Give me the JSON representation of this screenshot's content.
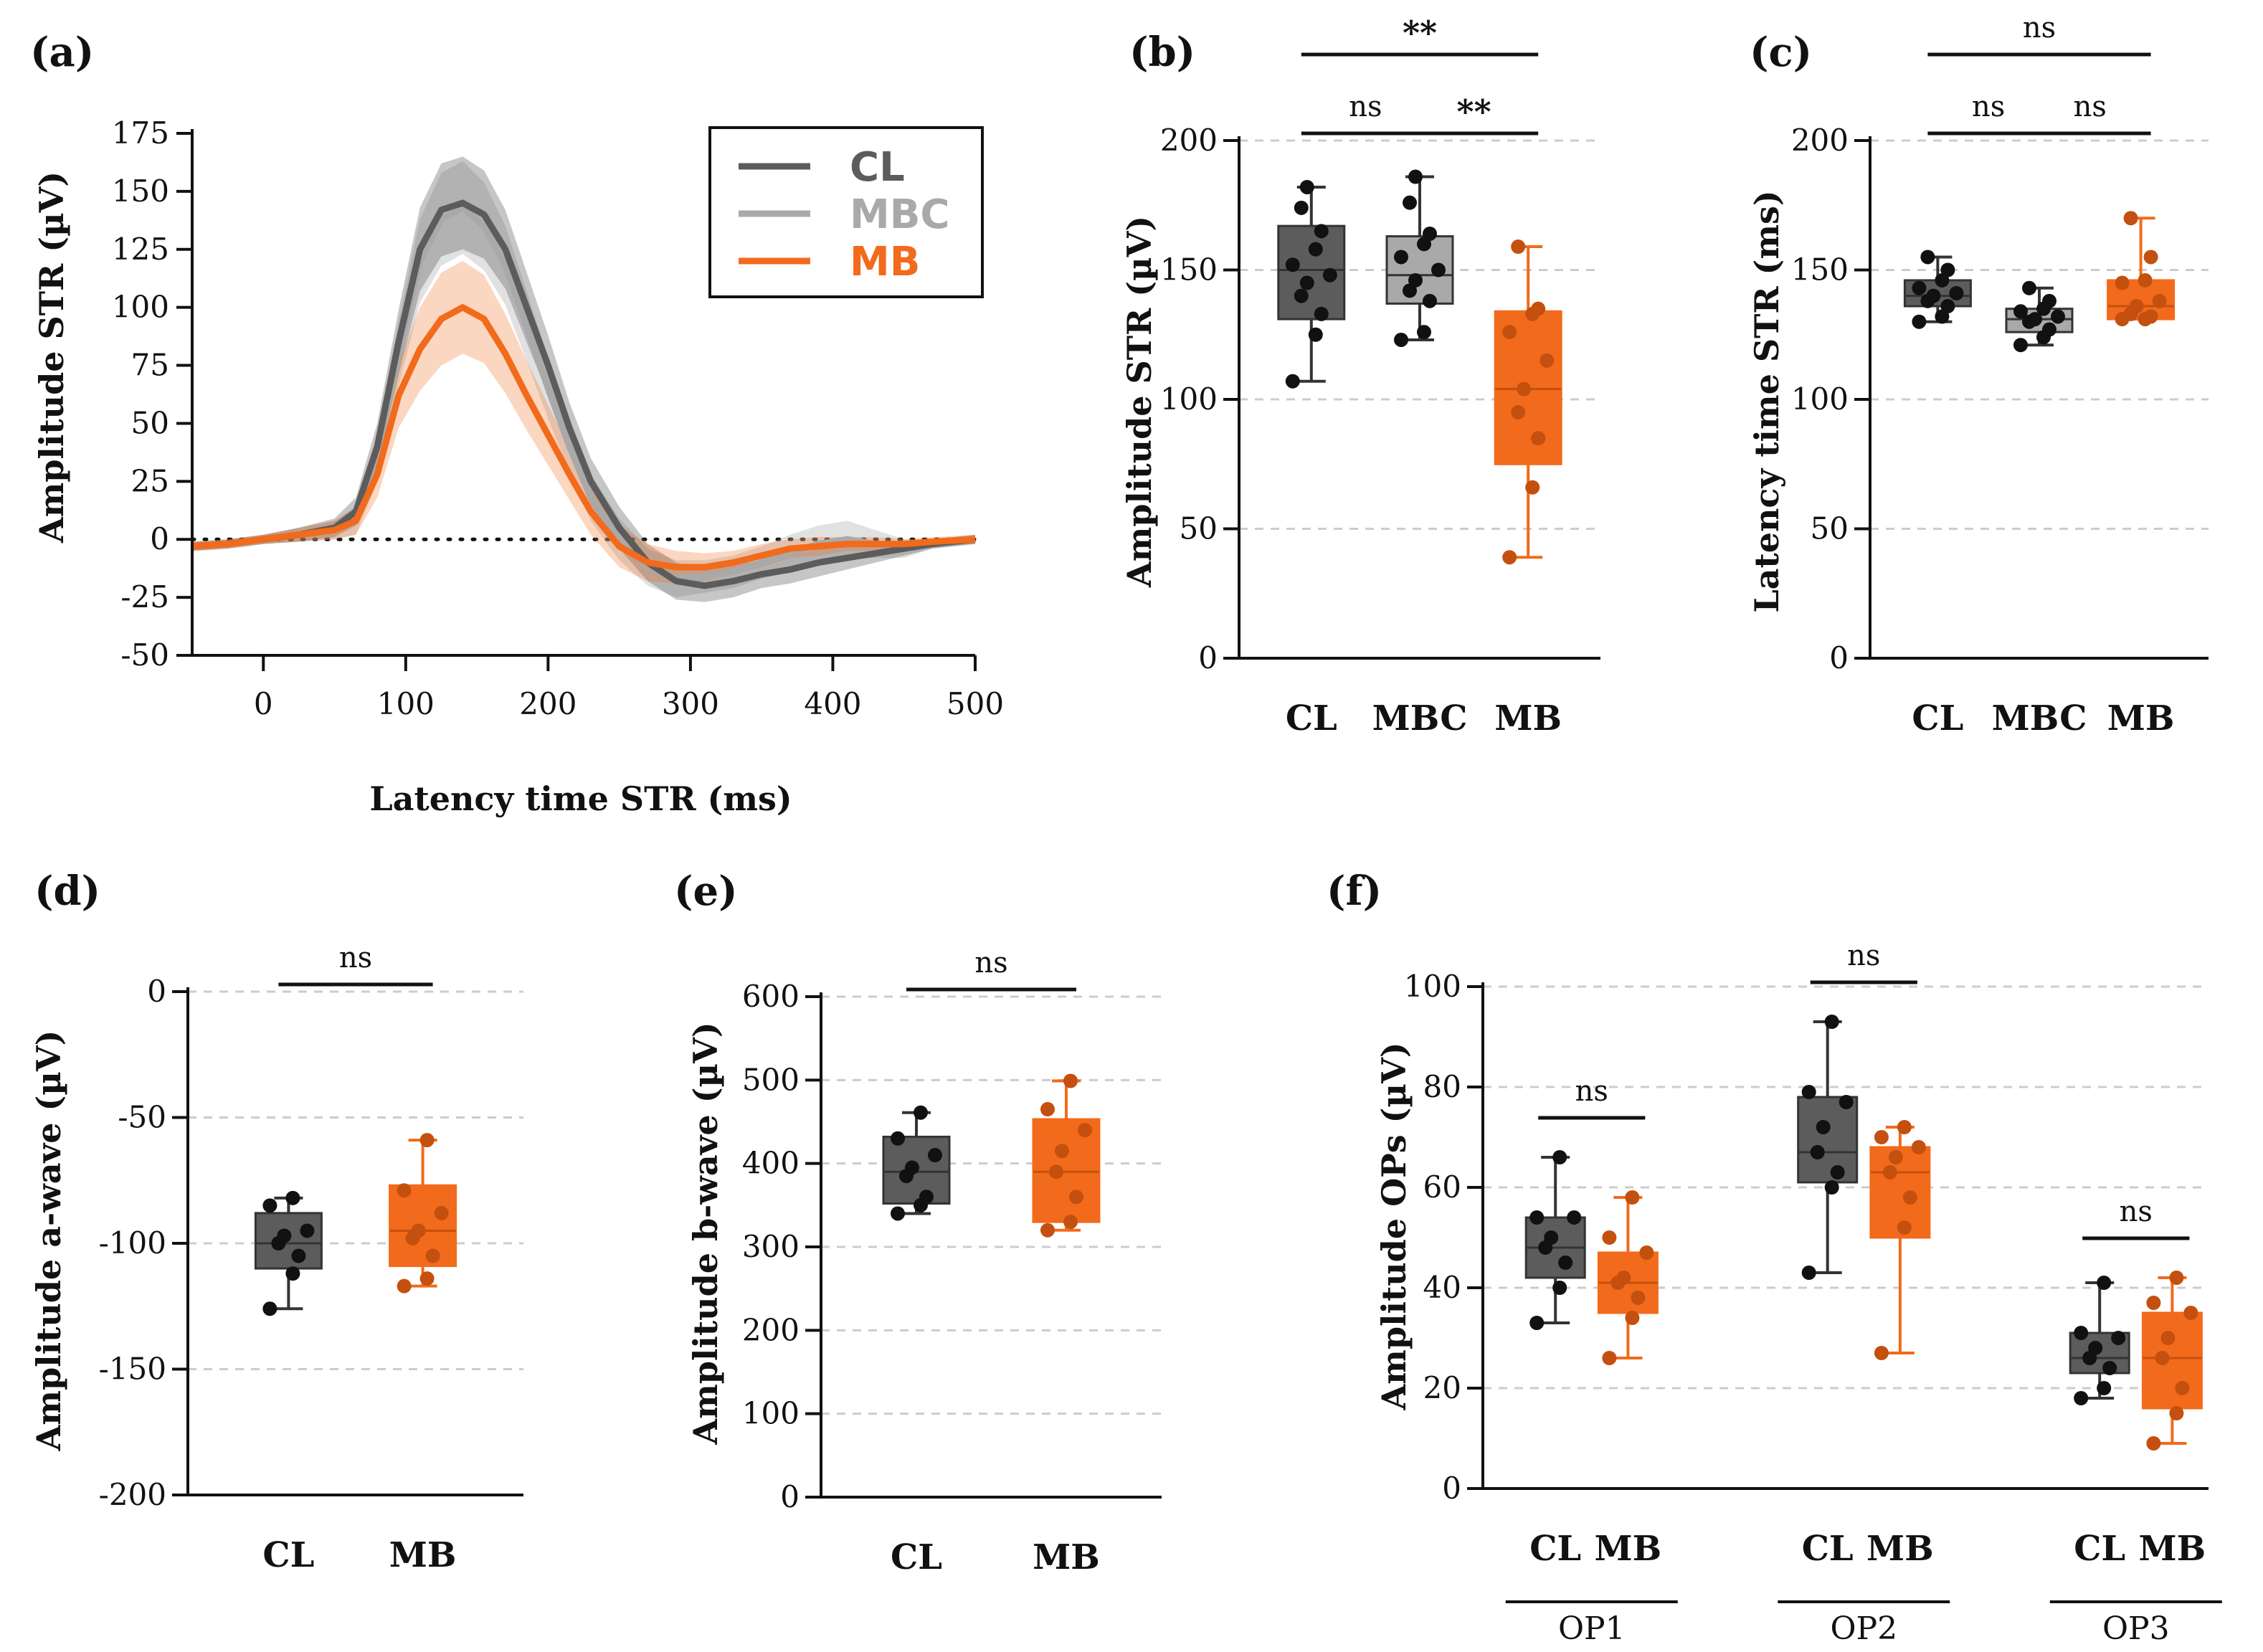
{
  "colors": {
    "CL": "#5c5c5c",
    "MBC": "#a9a9a9",
    "MB": "#f26a1b",
    "axis": "#111111",
    "grid": "#cccccc"
  },
  "chart_data": [
    {
      "id": "a",
      "panel_label": "(a)",
      "type": "line",
      "xlabel": "Latency time STR (ms)",
      "ylabel": "Amplitude STR (µV)",
      "xlim": [
        -50,
        500
      ],
      "ylim": [
        -50,
        175
      ],
      "xticks": [
        "0",
        "100",
        "200",
        "300",
        "400",
        "500"
      ],
      "yticks": [
        "-50",
        "-25",
        "0",
        "25",
        "50",
        "75",
        "100",
        "125",
        "150",
        "175"
      ],
      "legend": [
        "CL",
        "MBC",
        "MB"
      ],
      "x": [
        -50,
        -25,
        0,
        25,
        50,
        65,
        80,
        95,
        110,
        125,
        140,
        155,
        170,
        185,
        200,
        215,
        230,
        250,
        270,
        290,
        310,
        330,
        350,
        370,
        390,
        410,
        430,
        450,
        470,
        500
      ],
      "series": [
        {
          "name": "CL",
          "values": [
            -3,
            -2,
            0,
            2,
            5,
            12,
            40,
            85,
            125,
            142,
            145,
            140,
            125,
            100,
            75,
            48,
            25,
            5,
            -10,
            -18,
            -20,
            -18,
            -15,
            -13,
            -10,
            -8,
            -6,
            -4,
            -2,
            0
          ],
          "sd": [
            2,
            2,
            2,
            3,
            4,
            6,
            10,
            14,
            18,
            20,
            20,
            19,
            17,
            15,
            13,
            11,
            10,
            9,
            8,
            8,
            7,
            7,
            6,
            6,
            6,
            5,
            4,
            3,
            2,
            2
          ]
        },
        {
          "name": "MBC",
          "values": [
            -3,
            -2,
            0,
            2,
            4,
            8,
            35,
            80,
            120,
            138,
            143,
            135,
            118,
            92,
            65,
            40,
            18,
            0,
            -12,
            -17,
            -16,
            -14,
            -10,
            -6,
            -2,
            0,
            -2,
            -4,
            -2,
            0
          ],
          "sd": [
            2,
            2,
            2,
            3,
            4,
            6,
            10,
            14,
            18,
            20,
            20,
            19,
            17,
            15,
            13,
            11,
            10,
            9,
            8,
            8,
            7,
            7,
            7,
            8,
            8,
            8,
            6,
            4,
            2,
            2
          ]
        },
        {
          "name": "MB",
          "values": [
            -3,
            -2,
            0,
            2,
            4,
            8,
            28,
            62,
            82,
            95,
            100,
            95,
            80,
            62,
            45,
            28,
            12,
            -3,
            -10,
            -12,
            -12,
            -10,
            -7,
            -4,
            -3,
            -2,
            -2,
            -2,
            -1,
            0
          ],
          "sd": [
            2,
            2,
            2,
            3,
            4,
            6,
            10,
            14,
            18,
            20,
            20,
            19,
            17,
            15,
            13,
            11,
            10,
            9,
            8,
            7,
            6,
            5,
            5,
            4,
            4,
            3,
            3,
            2,
            2,
            2
          ]
        }
      ]
    },
    {
      "id": "b",
      "panel_label": "(b)",
      "type": "box",
      "ylabel": "Amplitude STR (µV)",
      "ylim": [
        0,
        200
      ],
      "yticks": [
        "0",
        "50",
        "100",
        "150",
        "200"
      ],
      "categories": [
        "CL",
        "MBC",
        "MB"
      ],
      "boxes": [
        {
          "name": "CL",
          "min": 107,
          "q1": 131,
          "median": 150,
          "q3": 167,
          "max": 182,
          "points": [
            107,
            125,
            133,
            140,
            145,
            148,
            152,
            158,
            165,
            174,
            182
          ]
        },
        {
          "name": "MBC",
          "min": 123,
          "q1": 137,
          "median": 148,
          "q3": 163,
          "max": 186,
          "points": [
            123,
            126,
            138,
            142,
            146,
            150,
            155,
            160,
            164,
            176,
            186
          ]
        },
        {
          "name": "MB",
          "min": 39,
          "q1": 75,
          "median": 104,
          "q3": 134,
          "max": 159,
          "points": [
            39,
            66,
            85,
            95,
            104,
            115,
            126,
            133,
            135,
            159
          ]
        }
      ],
      "comparisons": [
        {
          "from": "CL",
          "to": "MB",
          "label": "**",
          "level": 2
        },
        {
          "from": "CL",
          "to": "MBC",
          "label": "ns",
          "level": 1
        },
        {
          "from": "MBC",
          "to": "MB",
          "label": "**",
          "level": 1
        }
      ]
    },
    {
      "id": "c",
      "panel_label": "(c)",
      "type": "box",
      "ylabel": "Latency time STR (ms)",
      "ylim": [
        0,
        200
      ],
      "yticks": [
        "0",
        "50",
        "100",
        "150",
        "200"
      ],
      "categories": [
        "CL",
        "MBC",
        "MB"
      ],
      "boxes": [
        {
          "name": "CL",
          "min": 130,
          "q1": 136,
          "median": 140,
          "q3": 146,
          "max": 155,
          "points": [
            130,
            132,
            136,
            138,
            140,
            141,
            143,
            146,
            150,
            155
          ]
        },
        {
          "name": "MBC",
          "min": 121,
          "q1": 126,
          "median": 131,
          "q3": 135,
          "max": 143,
          "points": [
            121,
            124,
            127,
            130,
            131,
            132,
            134,
            135,
            138,
            143
          ]
        },
        {
          "name": "MB",
          "min": 131,
          "q1": 131,
          "median": 136,
          "q3": 146,
          "max": 170,
          "points": [
            131,
            131,
            132,
            133,
            136,
            138,
            145,
            146,
            155,
            170
          ]
        }
      ],
      "comparisons": [
        {
          "from": "CL",
          "to": "MB",
          "label": "ns",
          "level": 2
        },
        {
          "from": "CL",
          "to": "MBC",
          "label": "ns",
          "level": 1
        },
        {
          "from": "MBC",
          "to": "MB",
          "label": "ns",
          "level": 1
        }
      ]
    },
    {
      "id": "d",
      "panel_label": "(d)",
      "type": "box",
      "ylabel": "Amplitude a-wave (µV)",
      "ylim": [
        -200,
        0
      ],
      "yticks": [
        "-200",
        "-150",
        "-100",
        "-50",
        "0"
      ],
      "categories": [
        "CL",
        "MB"
      ],
      "boxes": [
        {
          "name": "CL",
          "min": -126,
          "q1": -110,
          "median": -100,
          "q3": -88,
          "max": -82,
          "points": [
            -126,
            -112,
            -105,
            -100,
            -97,
            -95,
            -85,
            -82
          ]
        },
        {
          "name": "MB",
          "min": -117,
          "q1": -109,
          "median": -95,
          "q3": -77,
          "max": -59,
          "points": [
            -117,
            -114,
            -105,
            -98,
            -95,
            -88,
            -79,
            -59
          ]
        }
      ],
      "comparisons": [
        {
          "from": "CL",
          "to": "MB",
          "label": "ns",
          "level": 1
        }
      ]
    },
    {
      "id": "e",
      "panel_label": "(e)",
      "type": "box",
      "ylabel": "Amplitude b-wave (µV)",
      "ylim": [
        0,
        600
      ],
      "yticks": [
        "0",
        "100",
        "200",
        "300",
        "400",
        "500",
        "600"
      ],
      "categories": [
        "CL",
        "MB"
      ],
      "boxes": [
        {
          "name": "CL",
          "min": 340,
          "q1": 352,
          "median": 390,
          "q3": 432,
          "max": 461,
          "points": [
            340,
            350,
            360,
            385,
            395,
            410,
            430,
            461
          ]
        },
        {
          "name": "MB",
          "min": 320,
          "q1": 330,
          "median": 390,
          "q3": 453,
          "max": 499,
          "points": [
            320,
            330,
            360,
            390,
            415,
            440,
            465,
            499
          ]
        }
      ],
      "comparisons": [
        {
          "from": "CL",
          "to": "MB",
          "label": "ns",
          "level": 1
        }
      ]
    },
    {
      "id": "f",
      "panel_label": "(f)",
      "type": "box",
      "ylabel": "Amplitude OPs (µV)",
      "ylim": [
        0,
        100
      ],
      "yticks": [
        "0",
        "20",
        "40",
        "60",
        "80",
        "100"
      ],
      "categories": [
        "CL",
        "MB",
        "CL",
        "MB",
        "CL",
        "MB"
      ],
      "groups": [
        "OP1",
        "OP2",
        "OP3"
      ],
      "boxes": [
        {
          "name": "CL",
          "group": "OP1",
          "min": 33,
          "q1": 42,
          "median": 48,
          "q3": 54,
          "max": 66,
          "points": [
            33,
            40,
            45,
            48,
            50,
            54,
            54,
            66
          ]
        },
        {
          "name": "MB",
          "group": "OP1",
          "min": 26,
          "q1": 35,
          "median": 41,
          "q3": 47,
          "max": 58,
          "points": [
            26,
            34,
            38,
            41,
            42,
            47,
            50,
            58
          ]
        },
        {
          "name": "CL",
          "group": "OP2",
          "min": 43,
          "q1": 61,
          "median": 67,
          "q3": 78,
          "max": 93,
          "points": [
            43,
            60,
            63,
            67,
            72,
            77,
            79,
            93
          ]
        },
        {
          "name": "MB",
          "group": "OP2",
          "min": 27,
          "q1": 50,
          "median": 63,
          "q3": 68,
          "max": 72,
          "points": [
            27,
            52,
            58,
            63,
            66,
            68,
            70,
            72
          ]
        },
        {
          "name": "CL",
          "group": "OP3",
          "min": 18,
          "q1": 23,
          "median": 26,
          "q3": 31,
          "max": 41,
          "points": [
            18,
            20,
            24,
            26,
            28,
            30,
            31,
            41
          ]
        },
        {
          "name": "MB",
          "group": "OP3",
          "min": 9,
          "q1": 16,
          "median": 26,
          "q3": 35,
          "max": 42,
          "points": [
            9,
            15,
            20,
            26,
            30,
            35,
            37,
            42
          ]
        }
      ],
      "comparisons": [
        {
          "from": 0,
          "to": 1,
          "label": "ns",
          "level": 1
        },
        {
          "from": 2,
          "to": 3,
          "label": "ns",
          "level": 1
        },
        {
          "from": 4,
          "to": 5,
          "label": "ns",
          "level": 1
        }
      ]
    }
  ]
}
